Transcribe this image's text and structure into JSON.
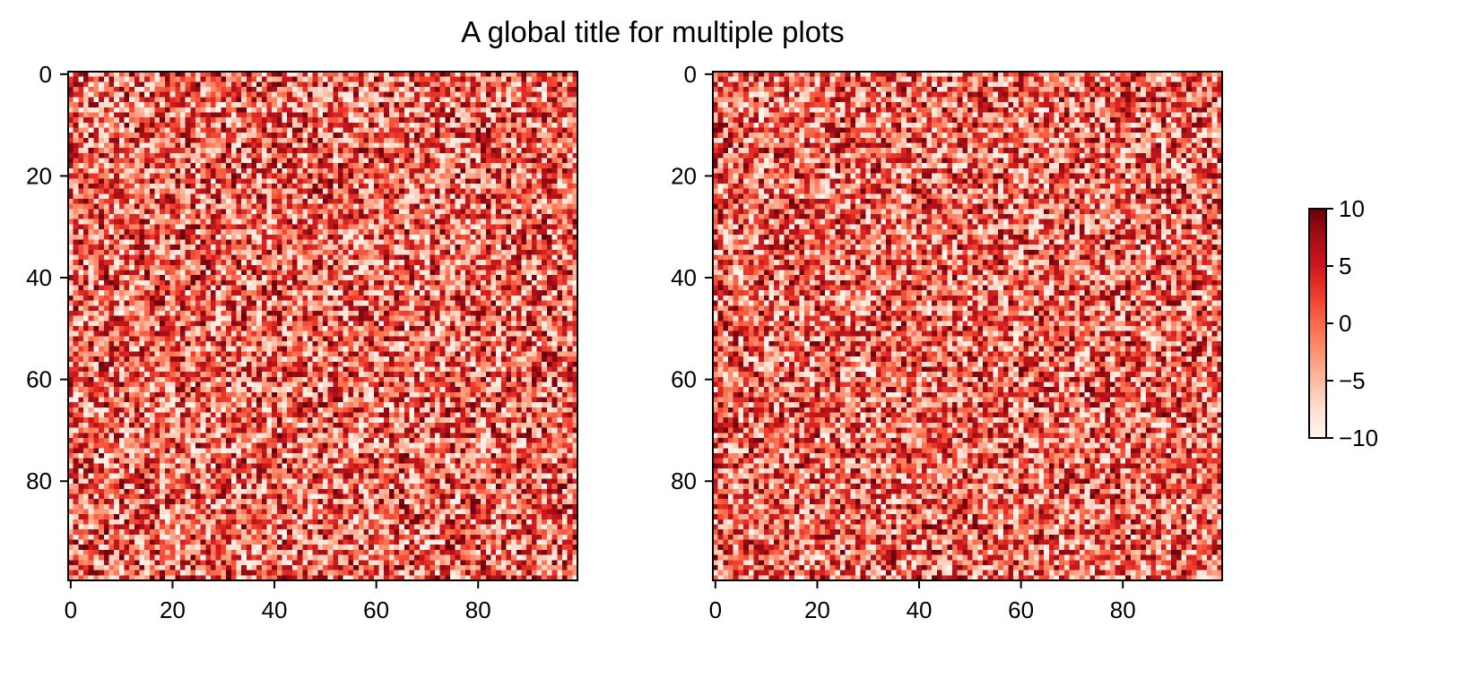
{
  "chart_data": {
    "type": "heatmap",
    "title": "A global title for multiple plots",
    "colormap": "Reds",
    "colormap_stops": [
      "#fff5f0",
      "#fee0d2",
      "#fcbba1",
      "#fc9272",
      "#fb6a4a",
      "#ef3b2c",
      "#cb181d",
      "#a50f15",
      "#67000d"
    ],
    "value_range": [
      -10,
      10
    ],
    "grid": false,
    "colorbar": {
      "ticks": [
        10,
        5,
        0,
        -5,
        -10
      ],
      "tick_labels": [
        "10",
        "5",
        "0",
        "−5",
        "−10"
      ]
    },
    "panels": [
      {
        "name": "left",
        "rows": 100,
        "cols": 100,
        "xlim": [
          -0.5,
          99.5
        ],
        "ylim": [
          99.5,
          -0.5
        ],
        "x_ticks": [
          0,
          20,
          40,
          60,
          80
        ],
        "x_tick_labels": [
          "0",
          "20",
          "40",
          "60",
          "80"
        ],
        "y_ticks": [
          0,
          20,
          40,
          60,
          80
        ],
        "y_tick_labels": [
          "0",
          "20",
          "40",
          "60",
          "80"
        ],
        "data_description": "uniform random noise",
        "value_range": [
          -10,
          10
        ]
      },
      {
        "name": "right",
        "rows": 100,
        "cols": 100,
        "xlim": [
          -0.5,
          99.5
        ],
        "ylim": [
          99.5,
          -0.5
        ],
        "x_ticks": [
          0,
          20,
          40,
          60,
          80
        ],
        "x_tick_labels": [
          "0",
          "20",
          "40",
          "60",
          "80"
        ],
        "y_ticks": [
          0,
          20,
          40,
          60,
          80
        ],
        "y_tick_labels": [
          "0",
          "20",
          "40",
          "60",
          "80"
        ],
        "data_description": "uniform random noise",
        "value_range": [
          -10,
          10
        ]
      }
    ]
  }
}
